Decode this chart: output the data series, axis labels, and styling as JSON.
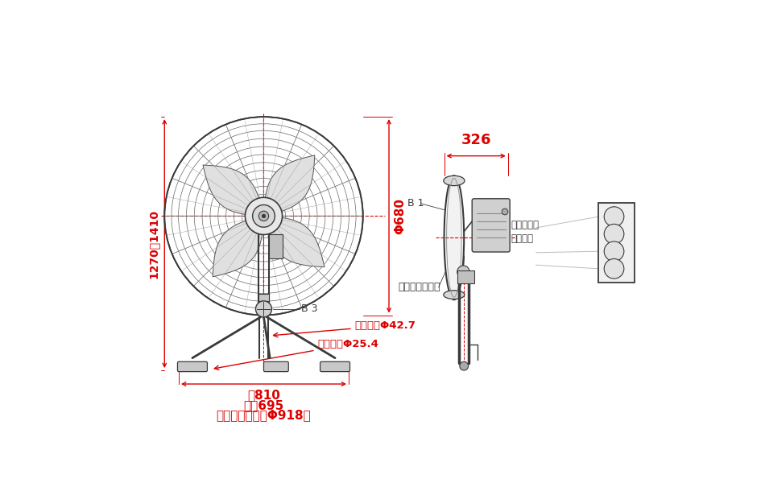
{
  "bg_color": "#ffffff",
  "dark_color": "#3a3a3a",
  "red_color": "#dd0000",
  "gray_color": "#888888",
  "light_gray": "#aaaaaa",
  "labels": {
    "height": "1270〜1410",
    "phi680": "Φ680",
    "b3": "B 3",
    "width": "幅810",
    "depth": "奥行695",
    "space": "（設置スペースΦ918）",
    "pipe427": "パイプ径Φ42.7",
    "pipe254": "パイプ径Φ25.4",
    "dim326": "326",
    "b1": "B 1",
    "guard": "ガード部Ａ－Ａ",
    "tilt": "上下首振り\n固定ねじ"
  }
}
